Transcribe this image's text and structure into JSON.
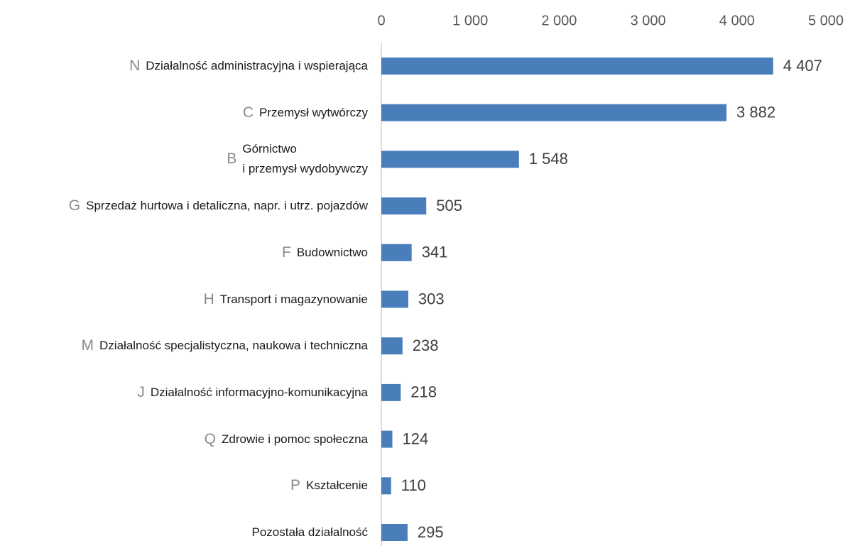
{
  "chart_data": {
    "type": "bar",
    "orientation": "horizontal",
    "codes": [
      "N",
      "C",
      "B",
      "G",
      "F",
      "H",
      "M",
      "J",
      "Q",
      "P",
      null
    ],
    "categories": [
      "Działalność administracyjna i wspierająca",
      "Przemysł wytwórczy",
      "Górnictwo\ni przemysł wydobywczy",
      "Sprzedaż hurtowa i detaliczna, napr. i utrz. pojazdów",
      "Budownictwo",
      "Transport i magazynowanie",
      "Działalność specjalistyczna, naukowa i techniczna",
      "Działalność informacyjno-komunikacyjna",
      "Zdrowie i pomoc społeczna",
      "Kształcenie",
      "Pozostała działalność"
    ],
    "values": [
      4407,
      3882,
      1548,
      505,
      341,
      303,
      238,
      218,
      124,
      110,
      295
    ],
    "value_labels": [
      "4 407",
      "3 882",
      "1 548",
      "505",
      "341",
      "303",
      "238",
      "218",
      "124",
      "110",
      "295"
    ],
    "color": "#4a7ebb",
    "xlim": [
      0,
      5000
    ],
    "xticks": [
      0,
      {
        "value": 1000,
        "label": "1 000"
      },
      {
        "value": 2000,
        "label": "2 000"
      },
      {
        "value": 3000,
        "label": "3 000"
      },
      {
        "value": 4000,
        "label": "4 000"
      },
      {
        "value": 5000,
        "label": "5 000"
      }
    ],
    "grid": false
  }
}
